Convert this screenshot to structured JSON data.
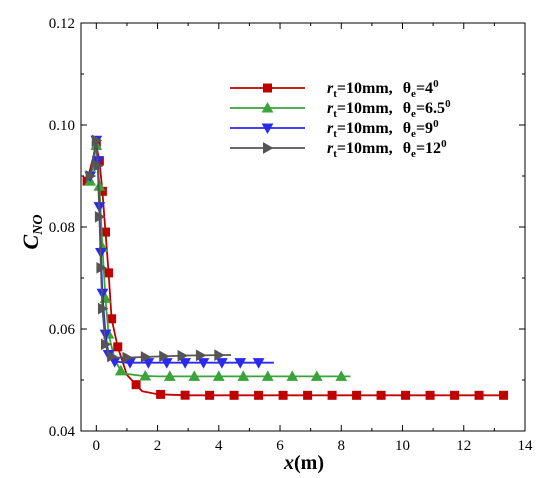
{
  "chart_data": {
    "type": "line",
    "xlabel": "x",
    "xunit": "(m)",
    "ylabel": "C",
    "ylabel_sub": "NO",
    "xlim": [
      -0.5,
      14
    ],
    "ylim": [
      0.04,
      0.12
    ],
    "xticks": [
      "0",
      "2",
      "4",
      "6",
      "8",
      "10",
      "12",
      "14"
    ],
    "yticks": [
      "0.04",
      "0.06",
      "0.08",
      "0.10",
      "0.12"
    ],
    "grid": false,
    "legend_position": "top-right",
    "series": [
      {
        "legend": {
          "r": "r",
          "r_sub": "t",
          "r_val": "=10mm,",
          "theta": "θ",
          "theta_sub": "e",
          "theta_val": "=4",
          "sup": "0"
        },
        "color": "#c00000",
        "marker": "square",
        "x": [
          -0.3,
          0.0,
          0.1,
          0.2,
          0.3,
          0.4,
          0.5,
          0.7,
          1.0,
          1.5,
          2.0,
          3.0,
          4.0,
          5.0,
          6.0,
          7.0,
          8.0,
          9.0,
          10.0,
          11.0,
          12.0,
          13.3
        ],
        "y": [
          0.089,
          0.096,
          0.093,
          0.087,
          0.079,
          0.071,
          0.062,
          0.0565,
          0.051,
          0.0478,
          0.0472,
          0.047,
          0.047,
          0.047,
          0.047,
          0.047,
          0.047,
          0.047,
          0.047,
          0.047,
          0.047,
          0.047
        ],
        "marker_x": [
          -0.3,
          0.0,
          0.1,
          0.2,
          0.3,
          0.4,
          0.5,
          0.7,
          1.3,
          2.1,
          2.9,
          3.7,
          4.5,
          5.3,
          6.1,
          6.9,
          7.7,
          8.5,
          9.3,
          10.1,
          10.9,
          11.7,
          12.5,
          13.3
        ]
      },
      {
        "legend": {
          "r": "r",
          "r_sub": "t",
          "r_val": "=10mm,",
          "theta": "θ",
          "theta_sub": "e",
          "theta_val": "=6.5",
          "sup": "0"
        },
        "color": "#3aa33a",
        "marker": "triangle-up",
        "x": [
          -0.2,
          0.0,
          0.1,
          0.2,
          0.3,
          0.4,
          0.6,
          0.8,
          1.0,
          1.5,
          2.0,
          3.0,
          4.0,
          5.0,
          6.0,
          7.0,
          8.3
        ],
        "y": [
          0.089,
          0.096,
          0.088,
          0.076,
          0.066,
          0.059,
          0.054,
          0.0518,
          0.0512,
          0.0508,
          0.0507,
          0.0507,
          0.0507,
          0.0507,
          0.0507,
          0.0507,
          0.0507
        ],
        "marker_x": [
          -0.2,
          0.0,
          0.1,
          0.2,
          0.3,
          0.4,
          0.8,
          1.6,
          2.4,
          3.2,
          4.0,
          4.8,
          5.6,
          6.4,
          7.2,
          8.0
        ]
      },
      {
        "legend": {
          "r": "r",
          "r_sub": "t",
          "r_val": "=10mm,",
          "theta": "θ",
          "theta_sub": "e",
          "theta_val": "=9",
          "sup": "0"
        },
        "color": "#2a2aee",
        "marker": "triangle-down",
        "x": [
          -0.2,
          0.0,
          0.05,
          0.1,
          0.15,
          0.2,
          0.3,
          0.4,
          0.6,
          1.0,
          2.0,
          3.0,
          4.0,
          5.0,
          5.8
        ],
        "y": [
          0.09,
          0.097,
          0.093,
          0.084,
          0.075,
          0.067,
          0.059,
          0.055,
          0.0536,
          0.0534,
          0.0534,
          0.0534,
          0.0534,
          0.0534,
          0.0534
        ],
        "marker_x": [
          -0.2,
          0.0,
          0.05,
          0.1,
          0.15,
          0.2,
          0.3,
          0.4,
          0.6,
          1.1,
          1.7,
          2.3,
          2.9,
          3.5,
          4.1,
          4.7,
          5.3
        ]
      },
      {
        "legend": {
          "r": "r",
          "r_sub": "t",
          "r_val": "=10mm,",
          "theta": "θ",
          "theta_sub": "e",
          "theta_val": "=12",
          "sup": "0"
        },
        "color": "#555555",
        "marker": "triangle-right",
        "x": [
          -0.2,
          0.0,
          0.05,
          0.1,
          0.15,
          0.2,
          0.3,
          0.4,
          0.6,
          1.0,
          2.0,
          3.0,
          4.4
        ],
        "y": [
          0.09,
          0.097,
          0.092,
          0.082,
          0.072,
          0.064,
          0.057,
          0.0548,
          0.0544,
          0.0544,
          0.0546,
          0.0548,
          0.0549
        ],
        "marker_x": [
          -0.2,
          0.0,
          0.05,
          0.1,
          0.15,
          0.2,
          0.3,
          0.5,
          1.0,
          1.6,
          2.2,
          2.8,
          3.4,
          4.0
        ]
      }
    ]
  }
}
